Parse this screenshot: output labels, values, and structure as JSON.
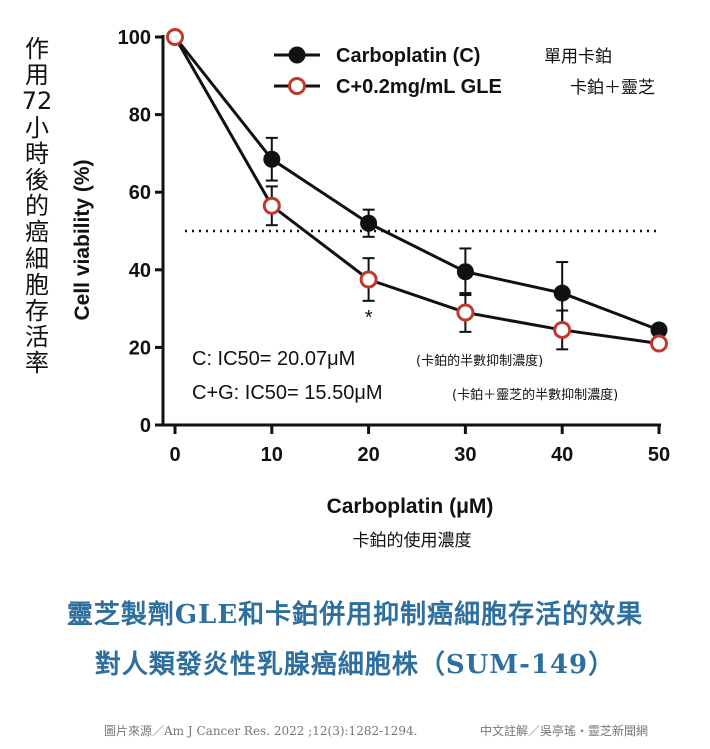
{
  "side_label": [
    "作",
    "用",
    "72",
    "小",
    "時",
    "後",
    "的",
    "癌",
    "細",
    "胞",
    "存",
    "活",
    "率"
  ],
  "chart_data": {
    "type": "line",
    "xlabel": "Carboplatin (μM)",
    "xlabel_zh": "卡鉑的使用濃度",
    "ylabel": "Cell viability (%)",
    "xlim": [
      0,
      50
    ],
    "ylim": [
      0,
      100
    ],
    "xticks": [
      0,
      10,
      20,
      30,
      40,
      50
    ],
    "yticks": [
      0,
      20,
      40,
      60,
      80,
      100
    ],
    "x": [
      0,
      10,
      20,
      30,
      40,
      50
    ],
    "reference_line": 50,
    "significance_marker": {
      "x": 20,
      "text": "*"
    },
    "series": [
      {
        "name": "Carboplatin (C)",
        "name_zh": "單用卡鉑",
        "marker": "filled",
        "values": [
          100,
          68.5,
          52,
          39.5,
          34,
          24.5
        ],
        "errors": [
          0,
          5.5,
          3.5,
          6,
          8,
          0
        ]
      },
      {
        "name": "C+0.2mg/mL GLE",
        "name_zh": "卡鉑＋靈芝",
        "marker": "open",
        "values": [
          100,
          56.5,
          37.5,
          29,
          24.5,
          21
        ],
        "errors": [
          0,
          5,
          5.5,
          5,
          5,
          0
        ]
      }
    ],
    "annotations": [
      {
        "text": "C: IC50= 20.07μM",
        "note": "(卡鉑的半數抑制濃度)"
      },
      {
        "text": "C+G: IC50= 15.50μM",
        "note": "(卡鉑＋靈芝的半數抑制濃度)"
      }
    ]
  },
  "caption": {
    "line1": "靈芝製劑GLE和卡鉑併用抑制癌細胞存活的效果",
    "line2": "對人類發炎性乳腺癌細胞株（SUM-149）"
  },
  "credits": {
    "source": "圖片來源／Am J Cancer Res. 2022 ;12(3):1282-1294.",
    "translator": "中文註解／吳亭瑤・靈芝新聞網"
  },
  "colors": {
    "caption": "#2f6f9e",
    "open_marker": "#c0392b",
    "line": "#111111"
  }
}
